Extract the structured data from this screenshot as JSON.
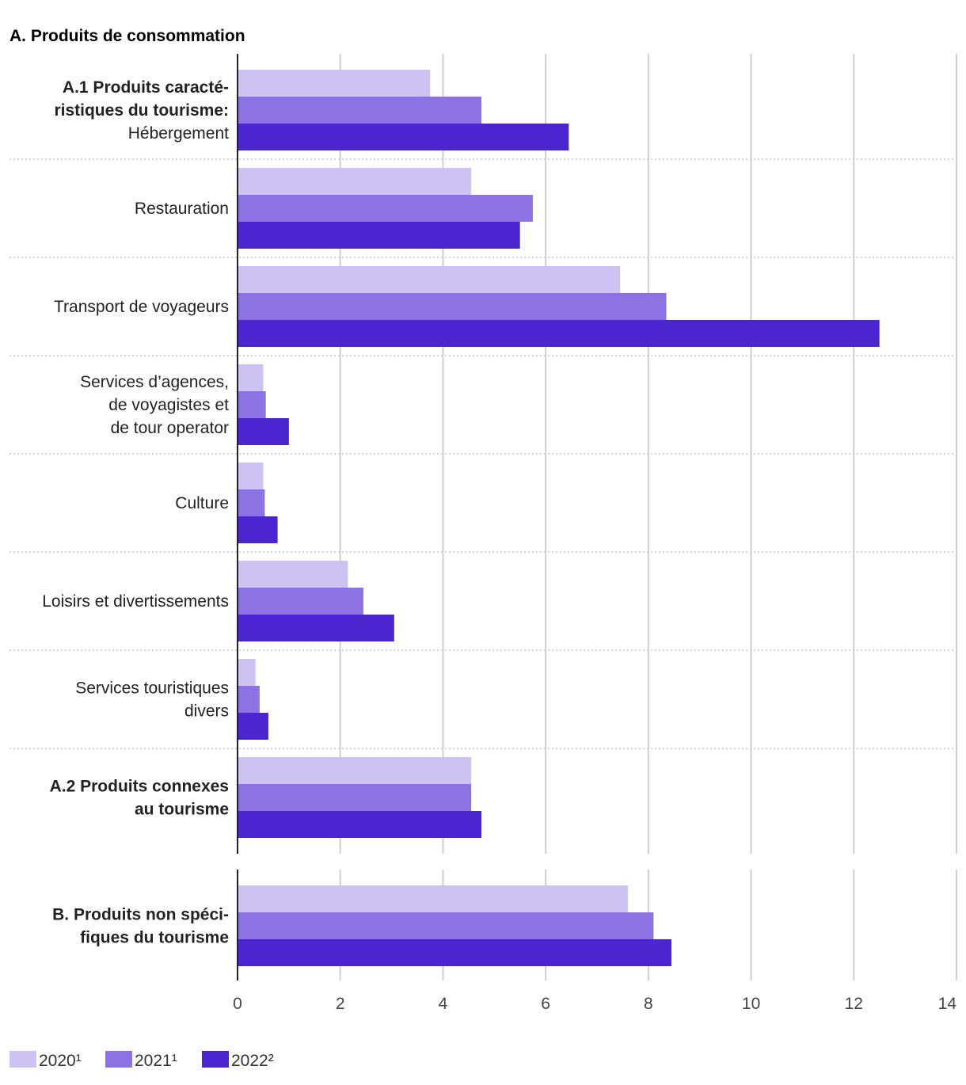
{
  "chart_data": {
    "type": "bar",
    "orientation": "horizontal",
    "title": "A. Produits de consommation",
    "xlim": [
      0,
      14
    ],
    "xticks": [
      0,
      2,
      4,
      6,
      8,
      10,
      12,
      14
    ],
    "grid": true,
    "legend_position": "bottom-left",
    "series": [
      {
        "name": "2020¹",
        "color": "#cdc3f2"
      },
      {
        "name": "2021¹",
        "color": "#8c72e2"
      },
      {
        "name": "2022²",
        "color": "#4b26d0"
      }
    ],
    "panels": [
      {
        "id": "A",
        "categories": [
          {
            "lines": [
              {
                "text": "A.1 Produits caracté-",
                "bold": true
              },
              {
                "text": "ristiques du tourisme:",
                "bold": true
              },
              {
                "text": "Hébergement",
                "bold": false
              }
            ],
            "values": [
              3.75,
              4.75,
              6.45
            ]
          },
          {
            "lines": [
              {
                "text": "Restauration",
                "bold": false
              }
            ],
            "values": [
              4.55,
              5.75,
              5.5
            ]
          },
          {
            "lines": [
              {
                "text": "Transport de voyageurs",
                "bold": false
              }
            ],
            "values": [
              7.45,
              8.35,
              12.5
            ]
          },
          {
            "lines": [
              {
                "text": "Services d’agences,",
                "bold": false
              },
              {
                "text": "de voyagistes et",
                "bold": false
              },
              {
                "text": "de tour operator",
                "bold": false
              }
            ],
            "values": [
              0.5,
              0.55,
              1.0
            ]
          },
          {
            "lines": [
              {
                "text": "Culture",
                "bold": false
              }
            ],
            "values": [
              0.5,
              0.53,
              0.78
            ]
          },
          {
            "lines": [
              {
                "text": "Loisirs et divertissements",
                "bold": false
              }
            ],
            "values": [
              2.15,
              2.45,
              3.05
            ]
          },
          {
            "lines": [
              {
                "text": "Services touristiques",
                "bold": false
              },
              {
                "text": "divers",
                "bold": false
              }
            ],
            "values": [
              0.35,
              0.43,
              0.6
            ]
          },
          {
            "lines": [
              {
                "text": "A.2 Produits connexes",
                "bold": true
              },
              {
                "text": "au tourisme",
                "bold": true
              }
            ],
            "values": [
              4.55,
              4.55,
              4.75
            ]
          }
        ]
      },
      {
        "id": "B",
        "categories": [
          {
            "lines": [
              {
                "text": "B. Produits non spéci-",
                "bold": true
              },
              {
                "text": "fiques du tourisme",
                "bold": true
              }
            ],
            "values": [
              7.6,
              8.1,
              8.45
            ]
          }
        ]
      }
    ]
  }
}
